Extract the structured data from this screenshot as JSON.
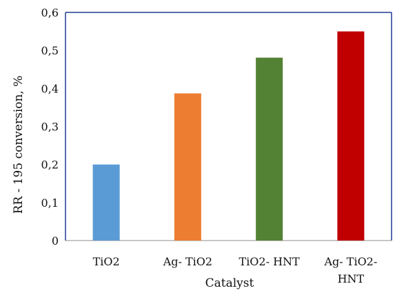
{
  "chart_data": {
    "type": "bar",
    "categories": [
      "TiO2",
      "Ag- TiO2",
      "TiO2- HNT",
      "Ag- TiO2- HNT"
    ],
    "category_lines": [
      [
        "TiO2"
      ],
      [
        "Ag- TiO2"
      ],
      [
        "TiO2- HNT"
      ],
      [
        "Ag- TiO2-",
        "HNT"
      ]
    ],
    "values": [
      0.2,
      0.387,
      0.481,
      0.55
    ],
    "bar_colors": [
      "#5b9bd5",
      "#ed7d31",
      "#548235",
      "#c00000"
    ],
    "xlabel": "Catalyst",
    "ylabel": "RR - 195 conversion, %",
    "ylim": [
      0,
      0.6
    ],
    "yticks": [
      0,
      0.1,
      0.2,
      0.3,
      0.4,
      0.5,
      0.6
    ],
    "ytick_labels": [
      "0",
      "0,1",
      "0,2",
      "0,3",
      "0,4",
      "0,5",
      "0,6"
    ],
    "grid": false,
    "legend": "none",
    "frame_color": "#1f3a93"
  }
}
